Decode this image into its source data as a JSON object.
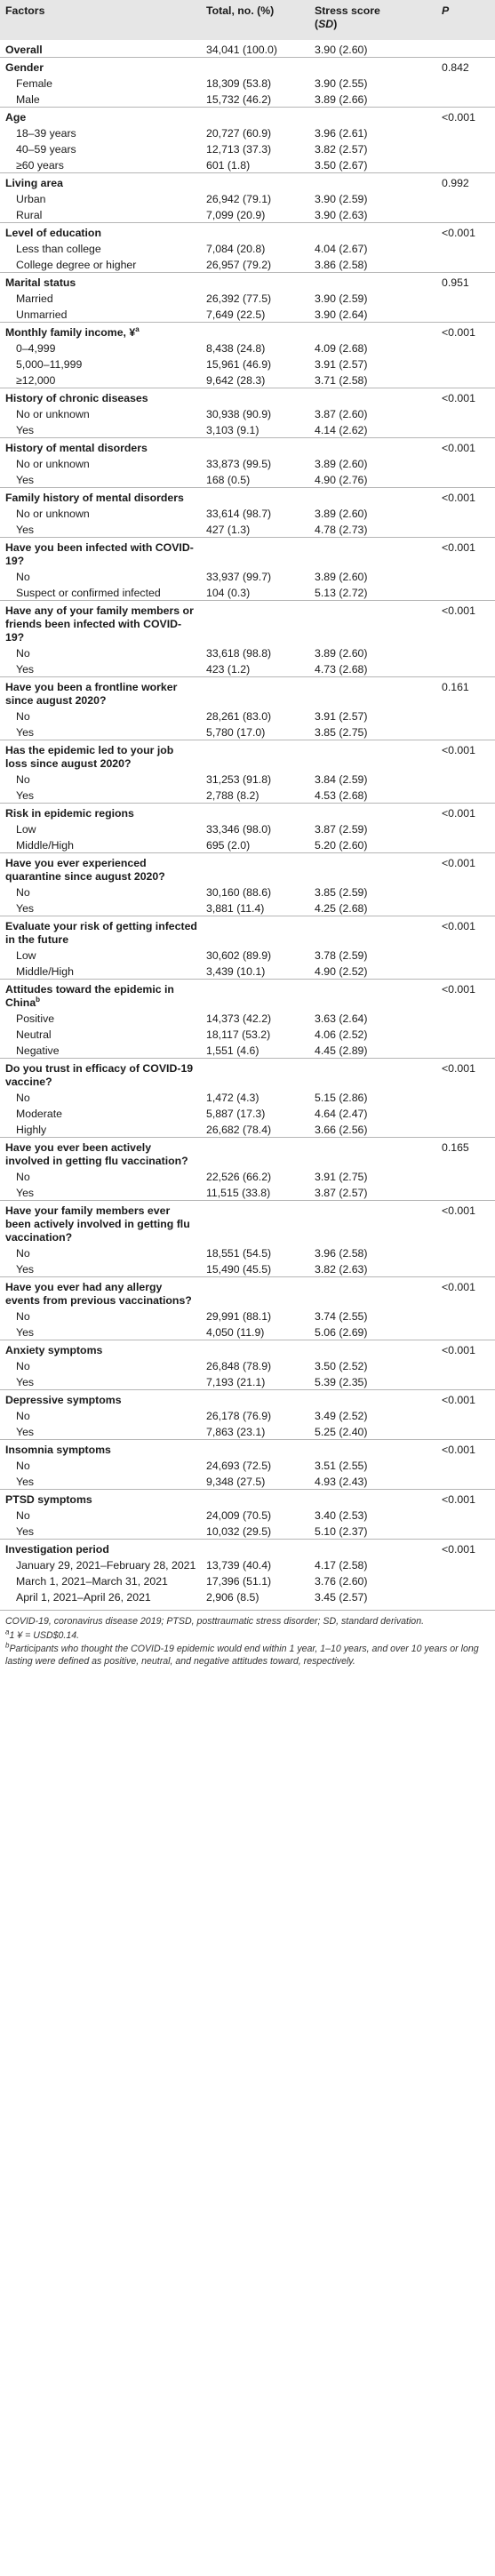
{
  "header": {
    "factors": "Factors",
    "total": "Total, no. (%)",
    "stress_prefix": "Stress score",
    "stress_sd": "SD",
    "p": "P"
  },
  "rows": [
    {
      "kind": "cat",
      "label": "Overall",
      "total": "34,041 (100.0)",
      "score": "3.90 (2.60)",
      "p": ""
    },
    {
      "kind": "cat",
      "label": "Gender",
      "total": "",
      "score": "",
      "p": "0.842"
    },
    {
      "kind": "sub",
      "label": "Female",
      "total": "18,309 (53.8)",
      "score": "3.90 (2.55)",
      "p": ""
    },
    {
      "kind": "sub",
      "label": "Male",
      "total": "15,732 (46.2)",
      "score": "3.89 (2.66)",
      "p": ""
    },
    {
      "kind": "cat",
      "label": "Age",
      "total": "",
      "score": "",
      "p": "<0.001"
    },
    {
      "kind": "sub",
      "label": "18–39 years",
      "total": "20,727 (60.9)",
      "score": "3.96 (2.61)",
      "p": ""
    },
    {
      "kind": "sub",
      "label": "40–59 years",
      "total": "12,713 (37.3)",
      "score": "3.82 (2.57)",
      "p": ""
    },
    {
      "kind": "sub",
      "label": "≥60 years",
      "total": "601 (1.8)",
      "score": "3.50 (2.67)",
      "p": ""
    },
    {
      "kind": "cat",
      "label": "Living area",
      "total": "",
      "score": "",
      "p": "0.992"
    },
    {
      "kind": "sub",
      "label": "Urban",
      "total": "26,942 (79.1)",
      "score": "3.90 (2.59)",
      "p": ""
    },
    {
      "kind": "sub",
      "label": "Rural",
      "total": "7,099 (20.9)",
      "score": "3.90 (2.63)",
      "p": ""
    },
    {
      "kind": "cat",
      "label": "Level of education",
      "total": "",
      "score": "",
      "p": "<0.001"
    },
    {
      "kind": "sub",
      "label": "Less than college",
      "total": "7,084 (20.8)",
      "score": "4.04 (2.67)",
      "p": ""
    },
    {
      "kind": "sub",
      "label": "College degree or higher",
      "total": "26,957 (79.2)",
      "score": "3.86 (2.58)",
      "p": ""
    },
    {
      "kind": "cat",
      "label": "Marital status",
      "total": "",
      "score": "",
      "p": "0.951"
    },
    {
      "kind": "sub",
      "label": "Married",
      "total": "26,392 (77.5)",
      "score": "3.90 (2.59)",
      "p": ""
    },
    {
      "kind": "sub",
      "label": "Unmarried",
      "total": "7,649 (22.5)",
      "score": "3.90 (2.64)",
      "p": ""
    },
    {
      "kind": "cat",
      "label": "Monthly family income, ¥",
      "sup": "a",
      "total": "",
      "score": "",
      "p": "<0.001"
    },
    {
      "kind": "sub",
      "label": "0–4,999",
      "total": "8,438 (24.8)",
      "score": "4.09 (2.68)",
      "p": ""
    },
    {
      "kind": "sub",
      "label": "5,000–11,999",
      "total": "15,961 (46.9)",
      "score": "3.91 (2.57)",
      "p": ""
    },
    {
      "kind": "sub",
      "label": "≥12,000",
      "total": "9,642 (28.3)",
      "score": "3.71 (2.58)",
      "p": ""
    },
    {
      "kind": "cat",
      "label": "History of chronic diseases",
      "total": "",
      "score": "",
      "p": "<0.001"
    },
    {
      "kind": "sub",
      "label": "No or unknown",
      "total": "30,938 (90.9)",
      "score": "3.87 (2.60)",
      "p": ""
    },
    {
      "kind": "sub",
      "label": "Yes",
      "total": "3,103 (9.1)",
      "score": "4.14 (2.62)",
      "p": ""
    },
    {
      "kind": "cat",
      "label": "History of mental disorders",
      "total": "",
      "score": "",
      "p": "<0.001"
    },
    {
      "kind": "sub",
      "label": "No or unknown",
      "total": "33,873 (99.5)",
      "score": "3.89 (2.60)",
      "p": ""
    },
    {
      "kind": "sub",
      "label": "Yes",
      "total": "168 (0.5)",
      "score": "4.90 (2.76)",
      "p": ""
    },
    {
      "kind": "cat",
      "label": "Family history of mental disorders",
      "total": "",
      "score": "",
      "p": "<0.001"
    },
    {
      "kind": "sub",
      "label": "No or unknown",
      "total": "33,614 (98.7)",
      "score": "3.89 (2.60)",
      "p": ""
    },
    {
      "kind": "sub",
      "label": "Yes",
      "total": "427 (1.3)",
      "score": "4.78 (2.73)",
      "p": ""
    },
    {
      "kind": "cat",
      "label": "Have you been infected with COVID-19?",
      "total": "",
      "score": "",
      "p": "<0.001"
    },
    {
      "kind": "sub",
      "label": "No",
      "total": "33,937 (99.7)",
      "score": "3.89 (2.60)",
      "p": ""
    },
    {
      "kind": "sub",
      "label": "Suspect or confirmed infected",
      "total": "104 (0.3)",
      "score": "5.13 (2.72)",
      "p": ""
    },
    {
      "kind": "cat",
      "label": "Have any of your family members or friends been infected with COVID-19?",
      "total": "",
      "score": "",
      "p": "<0.001"
    },
    {
      "kind": "sub",
      "label": "No",
      "total": "33,618 (98.8)",
      "score": "3.89 (2.60)",
      "p": ""
    },
    {
      "kind": "sub",
      "label": "Yes",
      "total": "423 (1.2)",
      "score": "4.73 (2.68)",
      "p": ""
    },
    {
      "kind": "cat",
      "label": "Have you been a frontline worker since august 2020?",
      "total": "",
      "score": "",
      "p": "0.161"
    },
    {
      "kind": "sub",
      "label": "No",
      "total": "28,261 (83.0)",
      "score": "3.91 (2.57)",
      "p": ""
    },
    {
      "kind": "sub",
      "label": "Yes",
      "total": "5,780 (17.0)",
      "score": "3.85 (2.75)",
      "p": ""
    },
    {
      "kind": "cat",
      "label": "Has the epidemic led to your job loss since august 2020?",
      "total": "",
      "score": "",
      "p": "<0.001"
    },
    {
      "kind": "sub",
      "label": "No",
      "total": "31,253 (91.8)",
      "score": "3.84 (2.59)",
      "p": ""
    },
    {
      "kind": "sub",
      "label": "Yes",
      "total": "2,788 (8.2)",
      "score": "4.53 (2.68)",
      "p": ""
    },
    {
      "kind": "cat",
      "label": "Risk in epidemic regions",
      "total": "",
      "score": "",
      "p": "<0.001"
    },
    {
      "kind": "sub",
      "label": "Low",
      "total": "33,346 (98.0)",
      "score": "3.87 (2.59)",
      "p": ""
    },
    {
      "kind": "sub",
      "label": "Middle/High",
      "total": "695 (2.0)",
      "score": "5.20 (2.60)",
      "p": ""
    },
    {
      "kind": "cat",
      "label": "Have you ever experienced quarantine since august 2020?",
      "total": "",
      "score": "",
      "p": "<0.001"
    },
    {
      "kind": "sub",
      "label": "No",
      "total": "30,160 (88.6)",
      "score": "3.85 (2.59)",
      "p": ""
    },
    {
      "kind": "sub",
      "label": "Yes",
      "total": "3,881 (11.4)",
      "score": "4.25 (2.68)",
      "p": ""
    },
    {
      "kind": "cat",
      "label": "Evaluate your risk of getting infected in the future",
      "total": "",
      "score": "",
      "p": "<0.001"
    },
    {
      "kind": "sub",
      "label": "Low",
      "total": "30,602 (89.9)",
      "score": "3.78 (2.59)",
      "p": ""
    },
    {
      "kind": "sub",
      "label": "Middle/High",
      "total": "3,439 (10.1)",
      "score": "4.90 (2.52)",
      "p": ""
    },
    {
      "kind": "cat",
      "label": "Attitudes toward the epidemic in China",
      "sup": "b",
      "total": "",
      "score": "",
      "p": "<0.001"
    },
    {
      "kind": "sub",
      "label": "Positive",
      "total": "14,373 (42.2)",
      "score": "3.63 (2.64)",
      "p": ""
    },
    {
      "kind": "sub",
      "label": "Neutral",
      "total": "18,117 (53.2)",
      "score": "4.06 (2.52)",
      "p": ""
    },
    {
      "kind": "sub",
      "label": "Negative",
      "total": "1,551 (4.6)",
      "score": "4.45 (2.89)",
      "p": ""
    },
    {
      "kind": "cat",
      "label": "Do you trust in efficacy of COVID-19 vaccine?",
      "total": "",
      "score": "",
      "p": "<0.001"
    },
    {
      "kind": "sub",
      "label": "No",
      "total": "1,472 (4.3)",
      "score": "5.15 (2.86)",
      "p": ""
    },
    {
      "kind": "sub",
      "label": "Moderate",
      "total": "5,887 (17.3)",
      "score": "4.64 (2.47)",
      "p": ""
    },
    {
      "kind": "sub",
      "label": "Highly",
      "total": "26,682 (78.4)",
      "score": "3.66 (2.56)",
      "p": ""
    },
    {
      "kind": "cat",
      "label": "Have you ever been actively involved in getting flu vaccination?",
      "total": "",
      "score": "",
      "p": "0.165"
    },
    {
      "kind": "sub",
      "label": "No",
      "total": "22,526 (66.2)",
      "score": "3.91 (2.75)",
      "p": ""
    },
    {
      "kind": "sub",
      "label": "Yes",
      "total": "11,515 (33.8)",
      "score": "3.87 (2.57)",
      "p": ""
    },
    {
      "kind": "cat",
      "label": "Have your family members ever been actively involved in getting flu vaccination?",
      "total": "",
      "score": "",
      "p": "<0.001"
    },
    {
      "kind": "sub",
      "label": "No",
      "total": "18,551 (54.5)",
      "score": "3.96 (2.58)",
      "p": ""
    },
    {
      "kind": "sub",
      "label": "Yes",
      "total": "15,490 (45.5)",
      "score": "3.82 (2.63)",
      "p": ""
    },
    {
      "kind": "cat",
      "label": "Have you ever had any allergy events from previous vaccinations?",
      "total": "",
      "score": "",
      "p": "<0.001"
    },
    {
      "kind": "sub",
      "label": "No",
      "total": "29,991 (88.1)",
      "score": "3.74 (2.55)",
      "p": ""
    },
    {
      "kind": "sub",
      "label": "Yes",
      "total": "4,050 (11.9)",
      "score": "5.06 (2.69)",
      "p": ""
    },
    {
      "kind": "cat",
      "label": "Anxiety symptoms",
      "total": "",
      "score": "",
      "p": "<0.001"
    },
    {
      "kind": "sub",
      "label": "No",
      "total": "26,848 (78.9)",
      "score": "3.50 (2.52)",
      "p": ""
    },
    {
      "kind": "sub",
      "label": "Yes",
      "total": "7,193 (21.1)",
      "score": "5.39 (2.35)",
      "p": ""
    },
    {
      "kind": "cat",
      "label": "Depressive symptoms",
      "total": "",
      "score": "",
      "p": "<0.001"
    },
    {
      "kind": "sub",
      "label": "No",
      "total": "26,178 (76.9)",
      "score": "3.49 (2.52)",
      "p": ""
    },
    {
      "kind": "sub",
      "label": "Yes",
      "total": "7,863 (23.1)",
      "score": "5.25 (2.40)",
      "p": ""
    },
    {
      "kind": "cat",
      "label": "Insomnia symptoms",
      "total": "",
      "score": "",
      "p": "<0.001"
    },
    {
      "kind": "sub",
      "label": "No",
      "total": "24,693 (72.5)",
      "score": "3.51 (2.55)",
      "p": ""
    },
    {
      "kind": "sub",
      "label": "Yes",
      "total": "9,348 (27.5)",
      "score": "4.93 (2.43)",
      "p": ""
    },
    {
      "kind": "cat",
      "label": "PTSD symptoms",
      "total": "",
      "score": "",
      "p": "<0.001"
    },
    {
      "kind": "sub",
      "label": "No",
      "total": "24,009 (70.5)",
      "score": "3.40 (2.53)",
      "p": ""
    },
    {
      "kind": "sub",
      "label": "Yes",
      "total": "10,032 (29.5)",
      "score": "5.10 (2.37)",
      "p": ""
    },
    {
      "kind": "cat",
      "label": "Investigation period",
      "total": "",
      "score": "",
      "p": "<0.001"
    },
    {
      "kind": "sub",
      "label": "January 29, 2021–February 28, 2021",
      "total": "13,739 (40.4)",
      "score": "4.17 (2.58)",
      "p": ""
    },
    {
      "kind": "sub",
      "label": "March 1, 2021–March 31, 2021",
      "total": "17,396 (51.1)",
      "score": "3.76 (2.60)",
      "p": ""
    },
    {
      "kind": "sub",
      "label": "April 1, 2021–April 26, 2021",
      "total": "2,906 (8.5)",
      "score": "3.45 (2.57)",
      "p": ""
    }
  ],
  "footnotes": [
    {
      "sup": "",
      "text": "COVID-19, coronavirus disease 2019; PTSD, posttraumatic stress disorder; SD, standard derivation."
    },
    {
      "sup": "a",
      "text": "1 ¥ = USD$0.14."
    },
    {
      "sup": "b",
      "text": "Participants who thought the COVID-19 epidemic would end within 1 year, 1–10 years, and over 10 years or long lasting were defined as positive, neutral, and negative attitudes toward, respectively."
    }
  ]
}
